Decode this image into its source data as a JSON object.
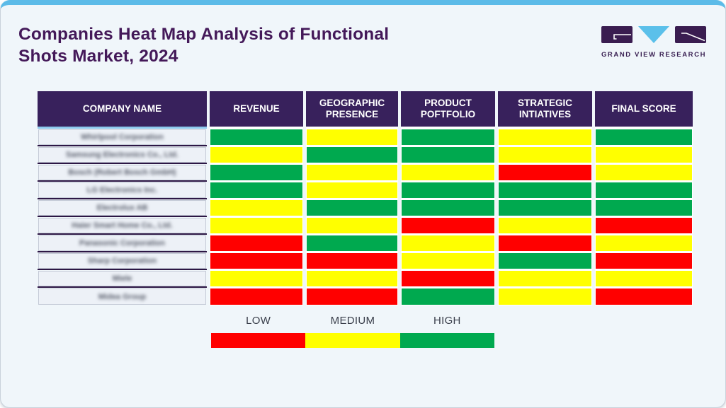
{
  "header": {
    "title_line1": "Companies Heat Map Analysis of Functional",
    "title_line2": "Shots Market, 2024"
  },
  "logo": {
    "brand": "GRAND VIEW RESEARCH"
  },
  "chart_data": {
    "type": "heatmap",
    "title": "Companies Heat Map Analysis of Functional Shots Market, 2024",
    "column_headers": [
      "COMPANY NAME",
      "REVENUE",
      "GEOGRAPHIC PRESENCE",
      "PRODUCT POFTFOLIO",
      "STRATEGIC INTIATIVES",
      "FINAL SCORE"
    ],
    "rows": [
      {
        "company": "Whirlpool Corporation",
        "values": [
          "high",
          "medium",
          "high",
          "medium",
          "high"
        ]
      },
      {
        "company": "Samsung Electronics Co., Ltd.",
        "values": [
          "medium",
          "high",
          "high",
          "medium",
          "medium"
        ]
      },
      {
        "company": "Bosch (Robert Bosch GmbH)",
        "values": [
          "high",
          "medium",
          "medium",
          "low",
          "medium"
        ]
      },
      {
        "company": "LG Electronics Inc.",
        "values": [
          "high",
          "medium",
          "high",
          "high",
          "high"
        ]
      },
      {
        "company": "Electrolux AB",
        "values": [
          "medium",
          "high",
          "high",
          "high",
          "high"
        ]
      },
      {
        "company": "Haier Smart Home Co., Ltd.",
        "values": [
          "medium",
          "medium",
          "low",
          "medium",
          "low"
        ]
      },
      {
        "company": "Panasonic Corporation",
        "values": [
          "low",
          "high",
          "medium",
          "low",
          "medium"
        ]
      },
      {
        "company": "Sharp Corporation",
        "values": [
          "low",
          "low",
          "medium",
          "high",
          "low"
        ]
      },
      {
        "company": "Miele",
        "values": [
          "medium",
          "medium",
          "low",
          "medium",
          "medium"
        ]
      },
      {
        "company": "Midea Group",
        "values": [
          "low",
          "low",
          "high",
          "medium",
          "low"
        ]
      }
    ],
    "scale_colors": {
      "low": "#FF0000",
      "medium": "#FFFF00",
      "high": "#00A94F"
    },
    "legend": [
      {
        "label": "LOW",
        "level": "low"
      },
      {
        "label": "MEDIUM",
        "level": "medium"
      },
      {
        "label": "HIGH",
        "level": "high"
      }
    ],
    "legend_position": "bottom"
  },
  "colors": {
    "frame_top_bar": "#5CBBE8",
    "header_bg": "#38215C",
    "row_separator": "#2D1745",
    "title_text": "#441959",
    "logo_purple": "#3A1D50",
    "logo_blue": "#5BC0EA",
    "company_cell_bg": "#EDF1F7",
    "page_bg": "#F0F6FA"
  }
}
